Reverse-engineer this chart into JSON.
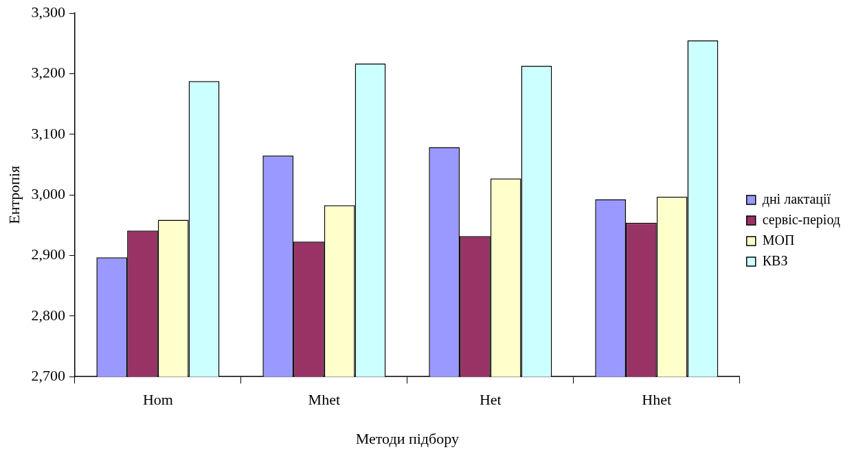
{
  "chart_data": {
    "type": "bar",
    "xlabel": "Методи підбору",
    "ylabel": "Ентропія",
    "categories": [
      "Hom",
      "Mhet",
      "Het",
      "Hhet"
    ],
    "series": [
      {
        "name": "дні лактації",
        "color": "#9999ff",
        "values": [
          2897,
          3065,
          3079,
          2993
        ]
      },
      {
        "name": "сервіс-період",
        "color": "#993366",
        "values": [
          2941,
          2923,
          2932,
          2954
        ]
      },
      {
        "name": "МОП",
        "color": "#ffffcc",
        "values": [
          2959,
          2983,
          3027,
          2997
        ]
      },
      {
        "name": "КВЗ",
        "color": "#ccffff",
        "values": [
          3188,
          3217,
          3213,
          3255
        ]
      }
    ],
    "ylim": [
      2700,
      3300
    ],
    "yticks": [
      {
        "value": 2700,
        "label": "2,700"
      },
      {
        "value": 2800,
        "label": "2,800"
      },
      {
        "value": 2900,
        "label": "2,900"
      },
      {
        "value": 3000,
        "label": "3,000"
      },
      {
        "value": 3100,
        "label": "3,100"
      },
      {
        "value": 3200,
        "label": "3,200"
      },
      {
        "value": 3300,
        "label": "3,300"
      }
    ],
    "grid": false,
    "legend": "right"
  }
}
